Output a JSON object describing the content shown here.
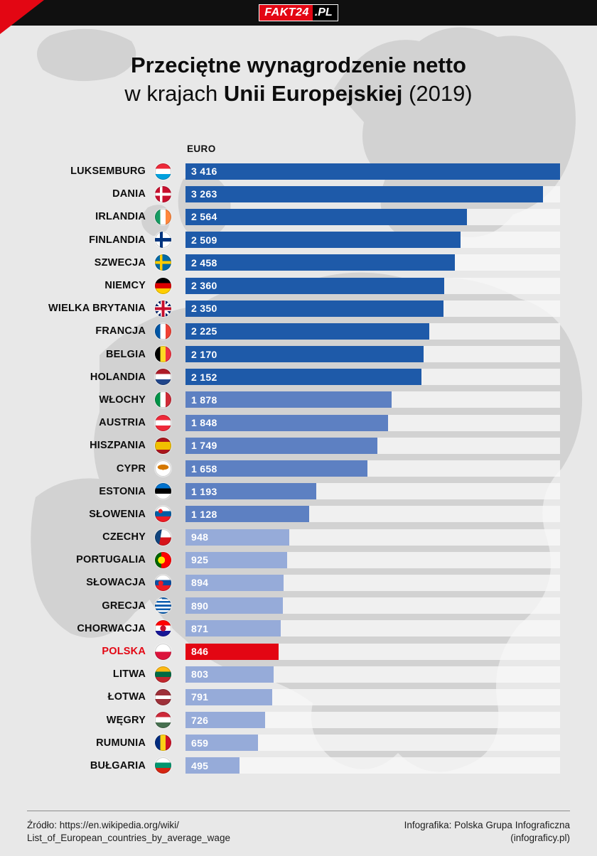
{
  "header": {
    "logo_main": "FAKT24",
    "logo_suffix": ".PL"
  },
  "title": {
    "line1": "Przeciętne wynagrodzenie netto",
    "line2_prefix": "w krajach ",
    "line2_bold": "Unii Europejskiej",
    "line2_suffix": " (2019)"
  },
  "chart_data": {
    "type": "bar",
    "title": "Przeciętne wynagrodzenie netto w krajach Unii Europejskiej (2019)",
    "unit_label": "EURO",
    "xlim": [
      0,
      3416
    ],
    "max_value": 3416,
    "legend": "none",
    "colors": {
      "dark": "#1e5aa9",
      "medium": "#5d80c2",
      "light": "#96abd9",
      "highlight": "#e30613"
    },
    "rows": [
      {
        "name": "LUKSEMBURG",
        "value": 3416,
        "display": "3 416",
        "tier": "dark",
        "flag": "luxembourg"
      },
      {
        "name": "DANIA",
        "value": 3263,
        "display": "3 263",
        "tier": "dark",
        "flag": "denmark"
      },
      {
        "name": "IRLANDIA",
        "value": 2564,
        "display": "2 564",
        "tier": "dark",
        "flag": "ireland"
      },
      {
        "name": "FINLANDIA",
        "value": 2509,
        "display": "2 509",
        "tier": "dark",
        "flag": "finland"
      },
      {
        "name": "SZWECJA",
        "value": 2458,
        "display": "2 458",
        "tier": "dark",
        "flag": "sweden"
      },
      {
        "name": "NIEMCY",
        "value": 2360,
        "display": "2 360",
        "tier": "dark",
        "flag": "germany"
      },
      {
        "name": "WIELKA BRYTANIA",
        "value": 2350,
        "display": "2 350",
        "tier": "dark",
        "flag": "uk"
      },
      {
        "name": "FRANCJA",
        "value": 2225,
        "display": "2 225",
        "tier": "dark",
        "flag": "france"
      },
      {
        "name": "BELGIA",
        "value": 2170,
        "display": "2 170",
        "tier": "dark",
        "flag": "belgium"
      },
      {
        "name": "HOLANDIA",
        "value": 2152,
        "display": "2 152",
        "tier": "dark",
        "flag": "netherlands"
      },
      {
        "name": "WŁOCHY",
        "value": 1878,
        "display": "1 878",
        "tier": "medium",
        "flag": "italy"
      },
      {
        "name": "AUSTRIA",
        "value": 1848,
        "display": "1 848",
        "tier": "medium",
        "flag": "austria"
      },
      {
        "name": "HISZPANIA",
        "value": 1749,
        "display": "1 749",
        "tier": "medium",
        "flag": "spain"
      },
      {
        "name": "CYPR",
        "value": 1658,
        "display": "1 658",
        "tier": "medium",
        "flag": "cyprus"
      },
      {
        "name": "ESTONIA",
        "value": 1193,
        "display": "1 193",
        "tier": "medium",
        "flag": "estonia"
      },
      {
        "name": "SŁOWENIA",
        "value": 1128,
        "display": "1 128",
        "tier": "medium",
        "flag": "slovenia"
      },
      {
        "name": "CZECHY",
        "value": 948,
        "display": "948",
        "tier": "light",
        "flag": "czechia"
      },
      {
        "name": "PORTUGALIA",
        "value": 925,
        "display": "925",
        "tier": "light",
        "flag": "portugal"
      },
      {
        "name": "SŁOWACJA",
        "value": 894,
        "display": "894",
        "tier": "light",
        "flag": "slovakia"
      },
      {
        "name": "GRECJA",
        "value": 890,
        "display": "890",
        "tier": "light",
        "flag": "greece"
      },
      {
        "name": "CHORWACJA",
        "value": 871,
        "display": "871",
        "tier": "light",
        "flag": "croatia"
      },
      {
        "name": "POLSKA",
        "value": 846,
        "display": "846",
        "tier": "red",
        "flag": "poland"
      },
      {
        "name": "LITWA",
        "value": 803,
        "display": "803",
        "tier": "light",
        "flag": "lithuania"
      },
      {
        "name": "ŁOTWA",
        "value": 791,
        "display": "791",
        "tier": "light",
        "flag": "latvia"
      },
      {
        "name": "WĘGRY",
        "value": 726,
        "display": "726",
        "tier": "light",
        "flag": "hungary"
      },
      {
        "name": "RUMUNIA",
        "value": 659,
        "display": "659",
        "tier": "light",
        "flag": "romania"
      },
      {
        "name": "BUŁGARIA",
        "value": 495,
        "display": "495",
        "tier": "light",
        "flag": "bulgaria"
      }
    ]
  },
  "footer": {
    "source_line1": "Źródło: https://en.wikipedia.org/wiki/",
    "source_line2": "List_of_European_countries_by_average_wage",
    "credit_line1": "Infografika: Polska Grupa Infograficzna",
    "credit_line2": "(infograficy.pl)"
  }
}
